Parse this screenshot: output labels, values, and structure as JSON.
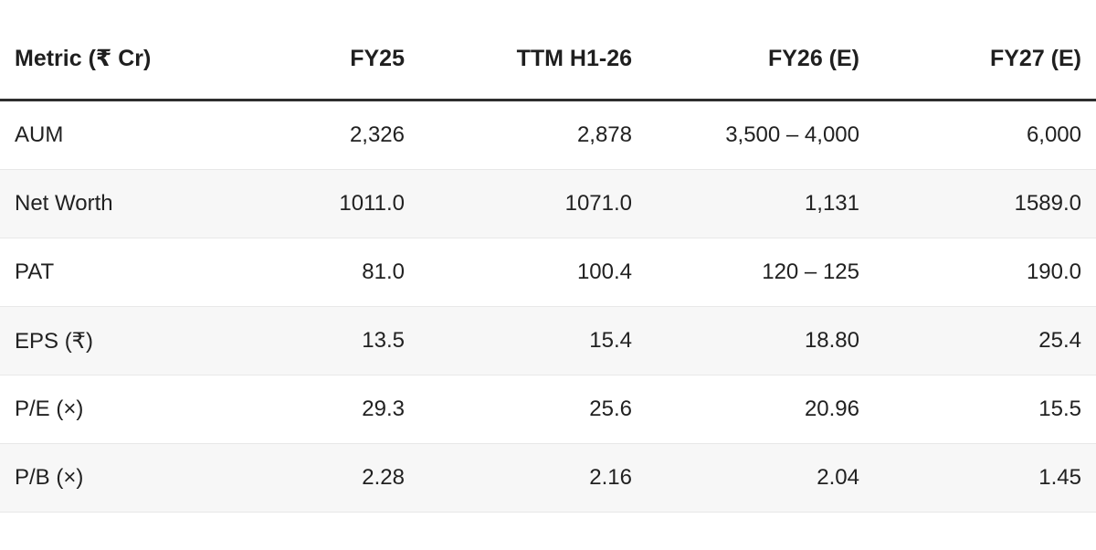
{
  "chart_data": {
    "type": "table",
    "title": "",
    "columns": [
      "Metric (₹ Cr)",
      "FY25",
      "TTM H1-26",
      "FY26 (E)",
      "FY27 (E)"
    ],
    "rows": [
      [
        "AUM",
        "2,326",
        "2,878",
        "3,500 – 4,000",
        "6,000"
      ],
      [
        "Net Worth",
        "1011.0",
        "1071.0",
        "1,131",
        "1589.0"
      ],
      [
        "PAT",
        "81.0",
        "100.4",
        "120 – 125",
        "190.0"
      ],
      [
        "EPS (₹)",
        "13.5",
        "15.4",
        "18.80",
        "25.4"
      ],
      [
        "P/E (×)",
        "29.3",
        "25.6",
        "20.96",
        "15.5"
      ],
      [
        "P/B (×)",
        "2.28",
        "2.16",
        "2.04",
        "1.45"
      ]
    ],
    "layout": {
      "zebra_striping": true,
      "striped_row_indexes": [
        1,
        3,
        5
      ],
      "numeric_columns_alignment": "right"
    }
  },
  "colors": {
    "background": "#ffffff",
    "stripe_row": "#f7f7f7",
    "header_rule": "#2e2e2e",
    "row_divider": "#e8e8e8",
    "header_text": "#1f1f1f",
    "body_text": "#212121"
  }
}
